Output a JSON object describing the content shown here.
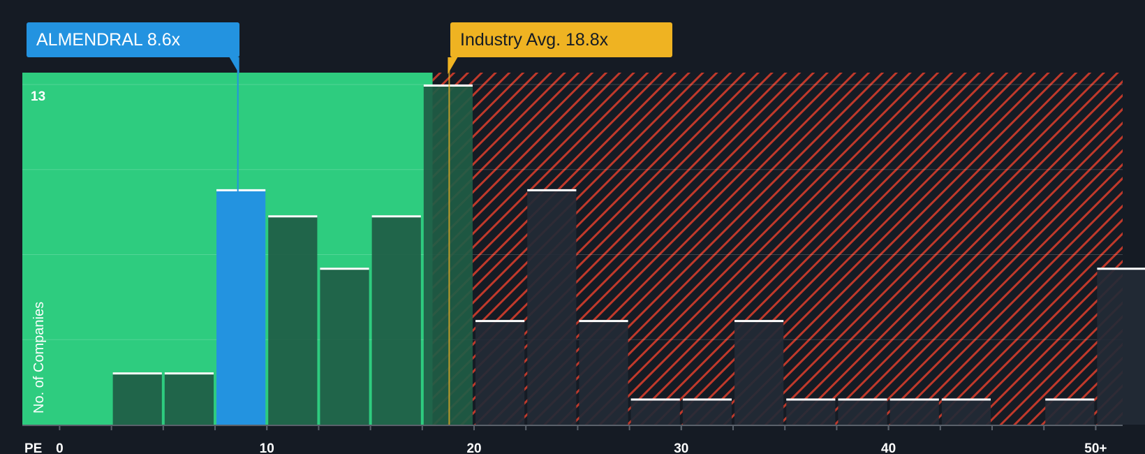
{
  "labels": {
    "company_callout": "ALMENDRAL 8.6x",
    "industry_callout": "Industry Avg. 18.8x",
    "axis_title": "PE",
    "ylabel": "No. of Companies",
    "ymax_label": "13"
  },
  "colors": {
    "background": "#151b24",
    "undervalued_zone": "#2ecc7f",
    "overvalued_zone": "#c0392b",
    "company": "#2393e0",
    "industry": "#efb322",
    "bar_in_green": "#1f5c45",
    "bar_in_red": "#232a36",
    "bar_cap": "#ffffff"
  },
  "chart_data": {
    "type": "bar",
    "title": "",
    "xlabel": "PE",
    "ylabel": "No. of Companies",
    "bin_width": 2.5,
    "bins": [
      {
        "x": 0,
        "count": 0
      },
      {
        "x": 2.5,
        "count": 2
      },
      {
        "x": 5,
        "count": 2
      },
      {
        "x": 7.5,
        "count": 9,
        "highlight": true
      },
      {
        "x": 10,
        "count": 8
      },
      {
        "x": 12.5,
        "count": 6
      },
      {
        "x": 15,
        "count": 8
      },
      {
        "x": 17.5,
        "count": 13
      },
      {
        "x": 20,
        "count": 4
      },
      {
        "x": 22.5,
        "count": 9
      },
      {
        "x": 25,
        "count": 4
      },
      {
        "x": 27.5,
        "count": 1
      },
      {
        "x": 30,
        "count": 1
      },
      {
        "x": 32.5,
        "count": 4
      },
      {
        "x": 35,
        "count": 1
      },
      {
        "x": 37.5,
        "count": 1
      },
      {
        "x": 40,
        "count": 1
      },
      {
        "x": 42.5,
        "count": 1
      },
      {
        "x": 45,
        "count": 0
      },
      {
        "x": 47.5,
        "count": 1
      },
      {
        "x": 50,
        "count": 6
      }
    ],
    "xticks": [
      {
        "value": 0,
        "label": "0"
      },
      {
        "value": 10,
        "label": "10"
      },
      {
        "value": 20,
        "label": "20"
      },
      {
        "value": 30,
        "label": "30"
      },
      {
        "value": 40,
        "label": "40"
      },
      {
        "value": 50,
        "label": "50+"
      }
    ],
    "xlim": [
      -1.8,
      51.3
    ],
    "ylim": [
      0,
      13
    ],
    "company_value": 8.6,
    "industry_avg": 18.8,
    "green_zone_end": 18.0
  }
}
